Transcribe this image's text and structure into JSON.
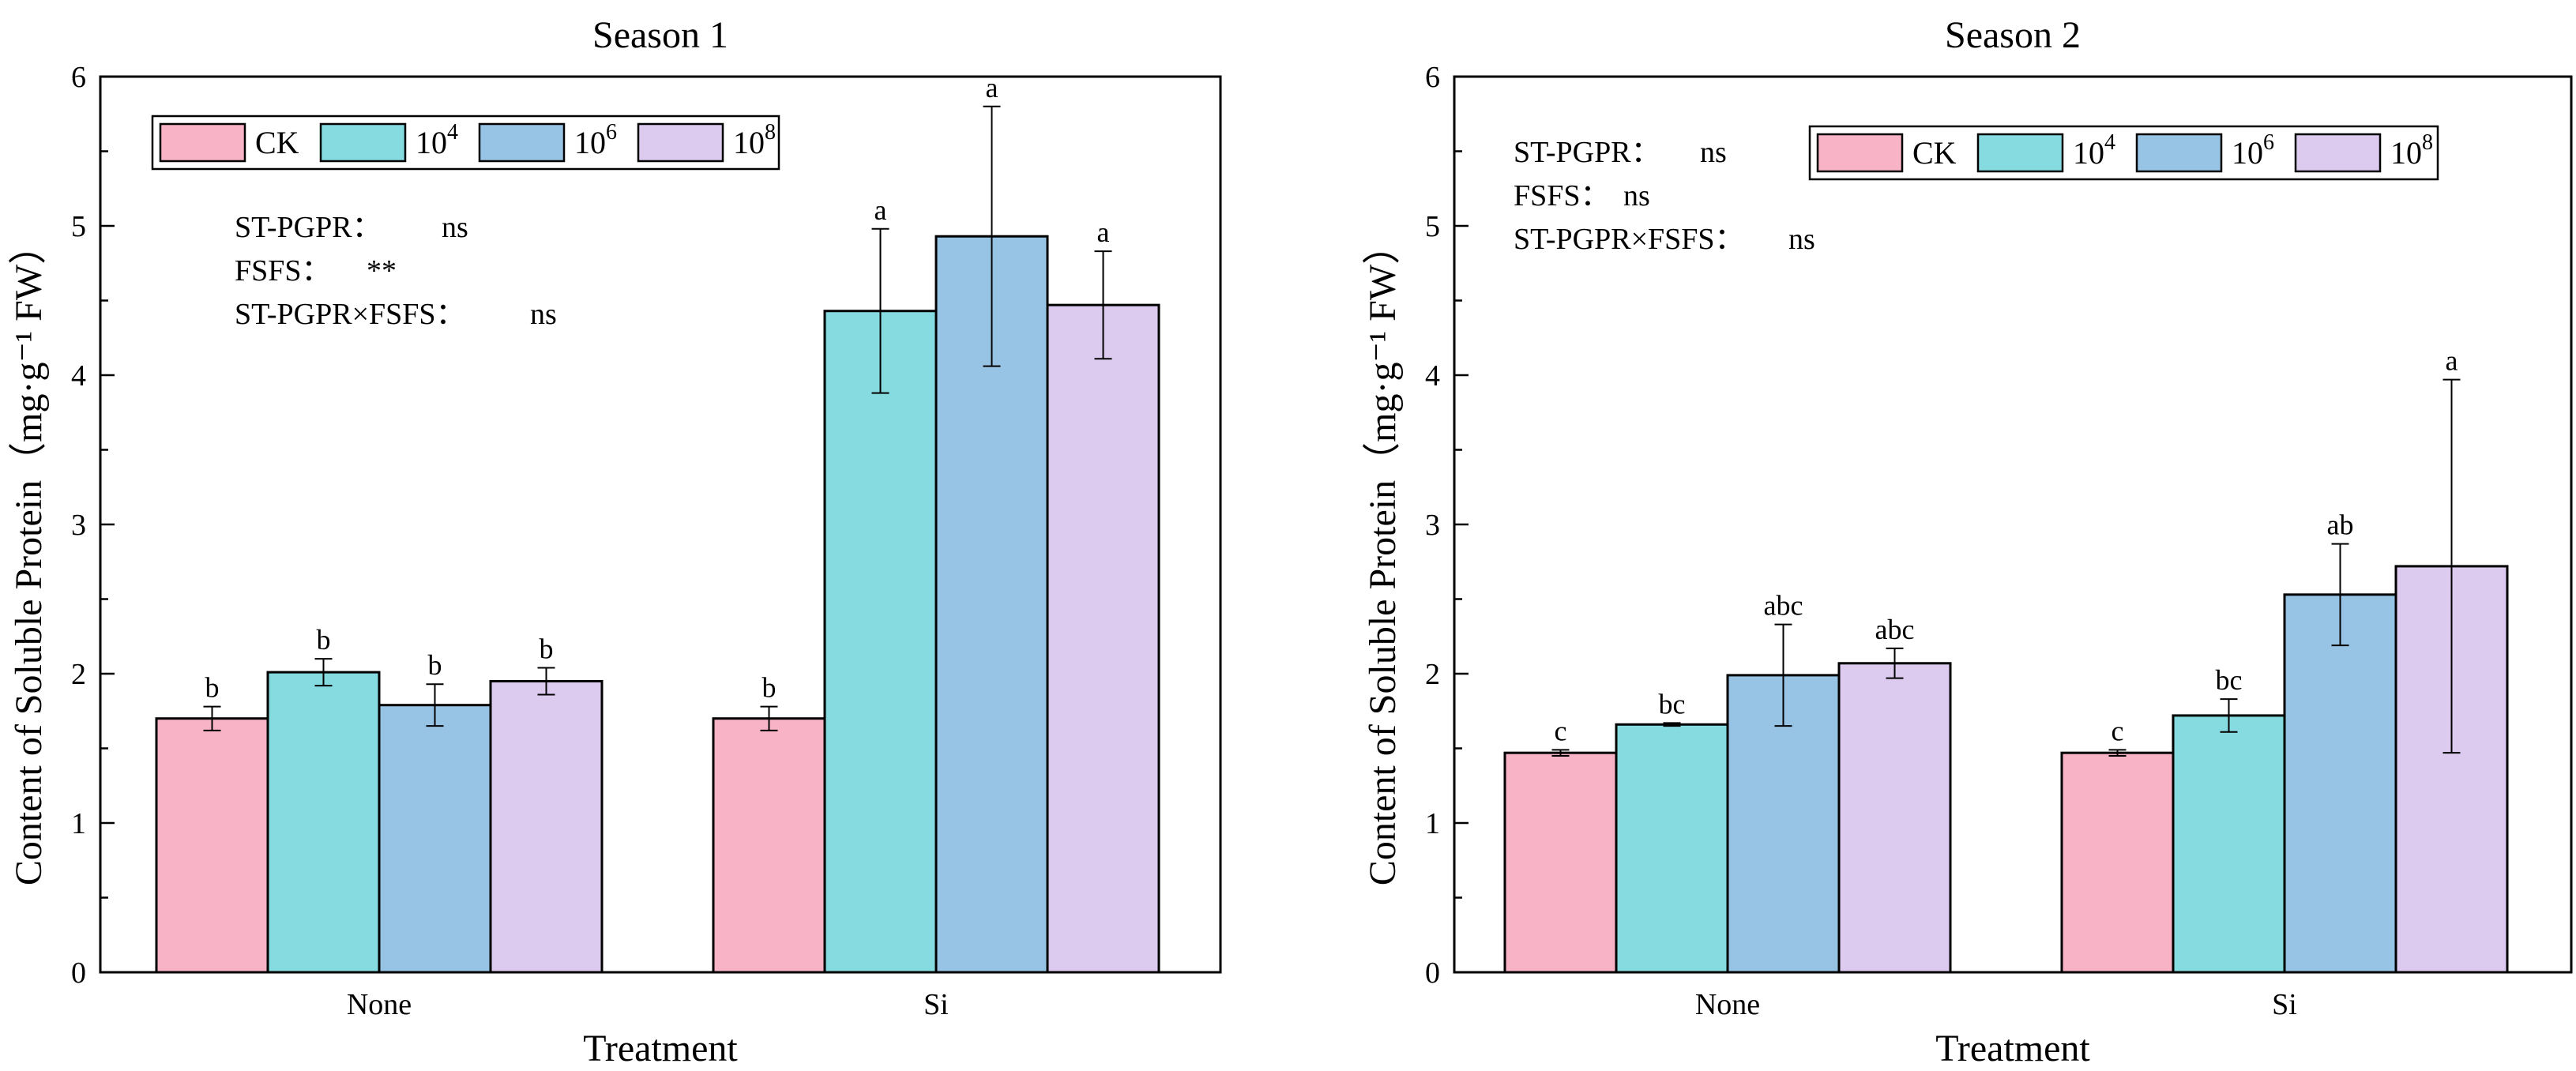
{
  "chart_data": [
    {
      "type": "bar",
      "title": "Season 1",
      "xlabel": "Treatment",
      "ylabel": "Content of Soluble Protein（mg·g⁻¹ FW）",
      "ylim": [
        0,
        6
      ],
      "yticks": [
        "0",
        "1",
        "2",
        "3",
        "4",
        "5",
        "6"
      ],
      "categories": [
        "None",
        "Si"
      ],
      "legend_position": "top-left",
      "series": [
        {
          "name": "CK",
          "sup": "",
          "color": "#f8b4c6",
          "values": [
            1.7,
            1.7
          ],
          "errors": [
            0.08,
            0.08
          ],
          "labels": [
            "b",
            "b"
          ]
        },
        {
          "name": "10",
          "sup": "4",
          "color": "#86dbe0",
          "values": [
            2.01,
            4.43
          ],
          "errors": [
            0.09,
            0.55
          ],
          "labels": [
            "b",
            "a"
          ]
        },
        {
          "name": "10",
          "sup": "6",
          "color": "#97c4e4",
          "values": [
            1.79,
            4.93
          ],
          "errors": [
            0.14,
            0.87
          ],
          "labels": [
            "b",
            "a"
          ]
        },
        {
          "name": "10",
          "sup": "8",
          "color": "#dccbef",
          "values": [
            1.95,
            4.47
          ],
          "errors": [
            0.09,
            0.36
          ],
          "labels": [
            "b",
            "a"
          ]
        }
      ],
      "stats": [
        {
          "label": "ST-PGPR：",
          "value": "ns"
        },
        {
          "label": "FSFS：",
          "value": "**"
        },
        {
          "label": "ST-PGPR×FSFS：",
          "value": "ns"
        }
      ]
    },
    {
      "type": "bar",
      "title": "Season 2",
      "xlabel": "Treatment",
      "ylabel": "Content of Soluble Protein（mg·g⁻¹ FW）",
      "ylim": [
        0,
        6
      ],
      "yticks": [
        "0",
        "1",
        "2",
        "3",
        "4",
        "5",
        "6"
      ],
      "categories": [
        "None",
        "Si"
      ],
      "legend_position": "top-right",
      "series": [
        {
          "name": "CK",
          "sup": "",
          "color": "#f8b4c6",
          "values": [
            1.47,
            1.47
          ],
          "errors": [
            0.02,
            0.02
          ],
          "labels": [
            "c",
            "c"
          ]
        },
        {
          "name": "10",
          "sup": "4",
          "color": "#86dbe0",
          "values": [
            1.66,
            1.72
          ],
          "errors": [
            0.01,
            0.11
          ],
          "labels": [
            "bc",
            "bc"
          ]
        },
        {
          "name": "10",
          "sup": "6",
          "color": "#97c4e4",
          "values": [
            1.99,
            2.53
          ],
          "errors": [
            0.34,
            0.34
          ],
          "labels": [
            "abc",
            "ab"
          ]
        },
        {
          "name": "10",
          "sup": "8",
          "color": "#dccbef",
          "values": [
            2.07,
            2.72
          ],
          "errors": [
            0.1,
            1.25
          ],
          "labels": [
            "abc",
            "a"
          ]
        }
      ],
      "stats": [
        {
          "label": "ST-PGPR：",
          "value": "ns"
        },
        {
          "label": "FSFS：",
          "value": "ns"
        },
        {
          "label": "ST-PGPR×FSFS：",
          "value": "ns"
        }
      ]
    }
  ]
}
